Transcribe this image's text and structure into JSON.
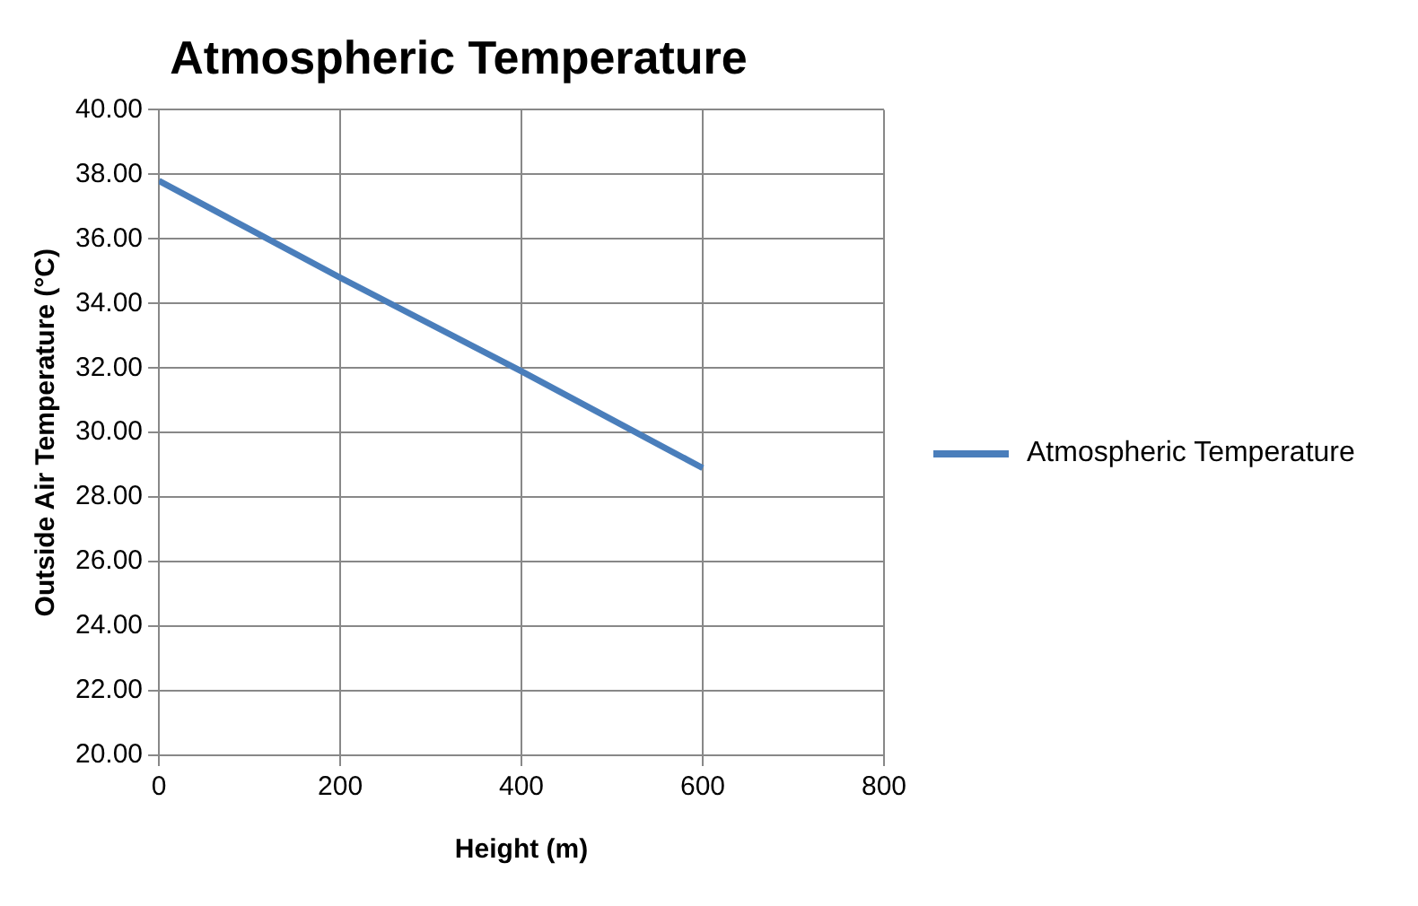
{
  "chart_data": {
    "type": "line",
    "title": "Atmospheric Temperature",
    "xlabel": "Height (m)",
    "ylabel": "Outside Air Temperature (°C)",
    "x": [
      0,
      200,
      400,
      600
    ],
    "series": [
      {
        "name": "Atmospheric Temperature",
        "color": "#4a7ebb",
        "values": [
          37.8,
          34.8,
          31.9,
          28.9
        ]
      }
    ],
    "xlim": [
      0,
      800
    ],
    "xticks": [
      0,
      200,
      400,
      600,
      800
    ],
    "ylim": [
      20,
      40
    ],
    "yticks": [
      {
        "value": 20,
        "label": "20.00"
      },
      {
        "value": 22,
        "label": "22.00"
      },
      {
        "value": 24,
        "label": "24.00"
      },
      {
        "value": 26,
        "label": "26.00"
      },
      {
        "value": 28,
        "label": "28.00"
      },
      {
        "value": 30,
        "label": "30.00"
      },
      {
        "value": 32,
        "label": "32.00"
      },
      {
        "value": 34,
        "label": "34.00"
      },
      {
        "value": 36,
        "label": "36.00"
      },
      {
        "value": 38,
        "label": "38.00"
      },
      {
        "value": 40,
        "label": "40.00"
      }
    ],
    "grid": true,
    "legend": "right",
    "marker": "none",
    "line_style": "solid"
  }
}
